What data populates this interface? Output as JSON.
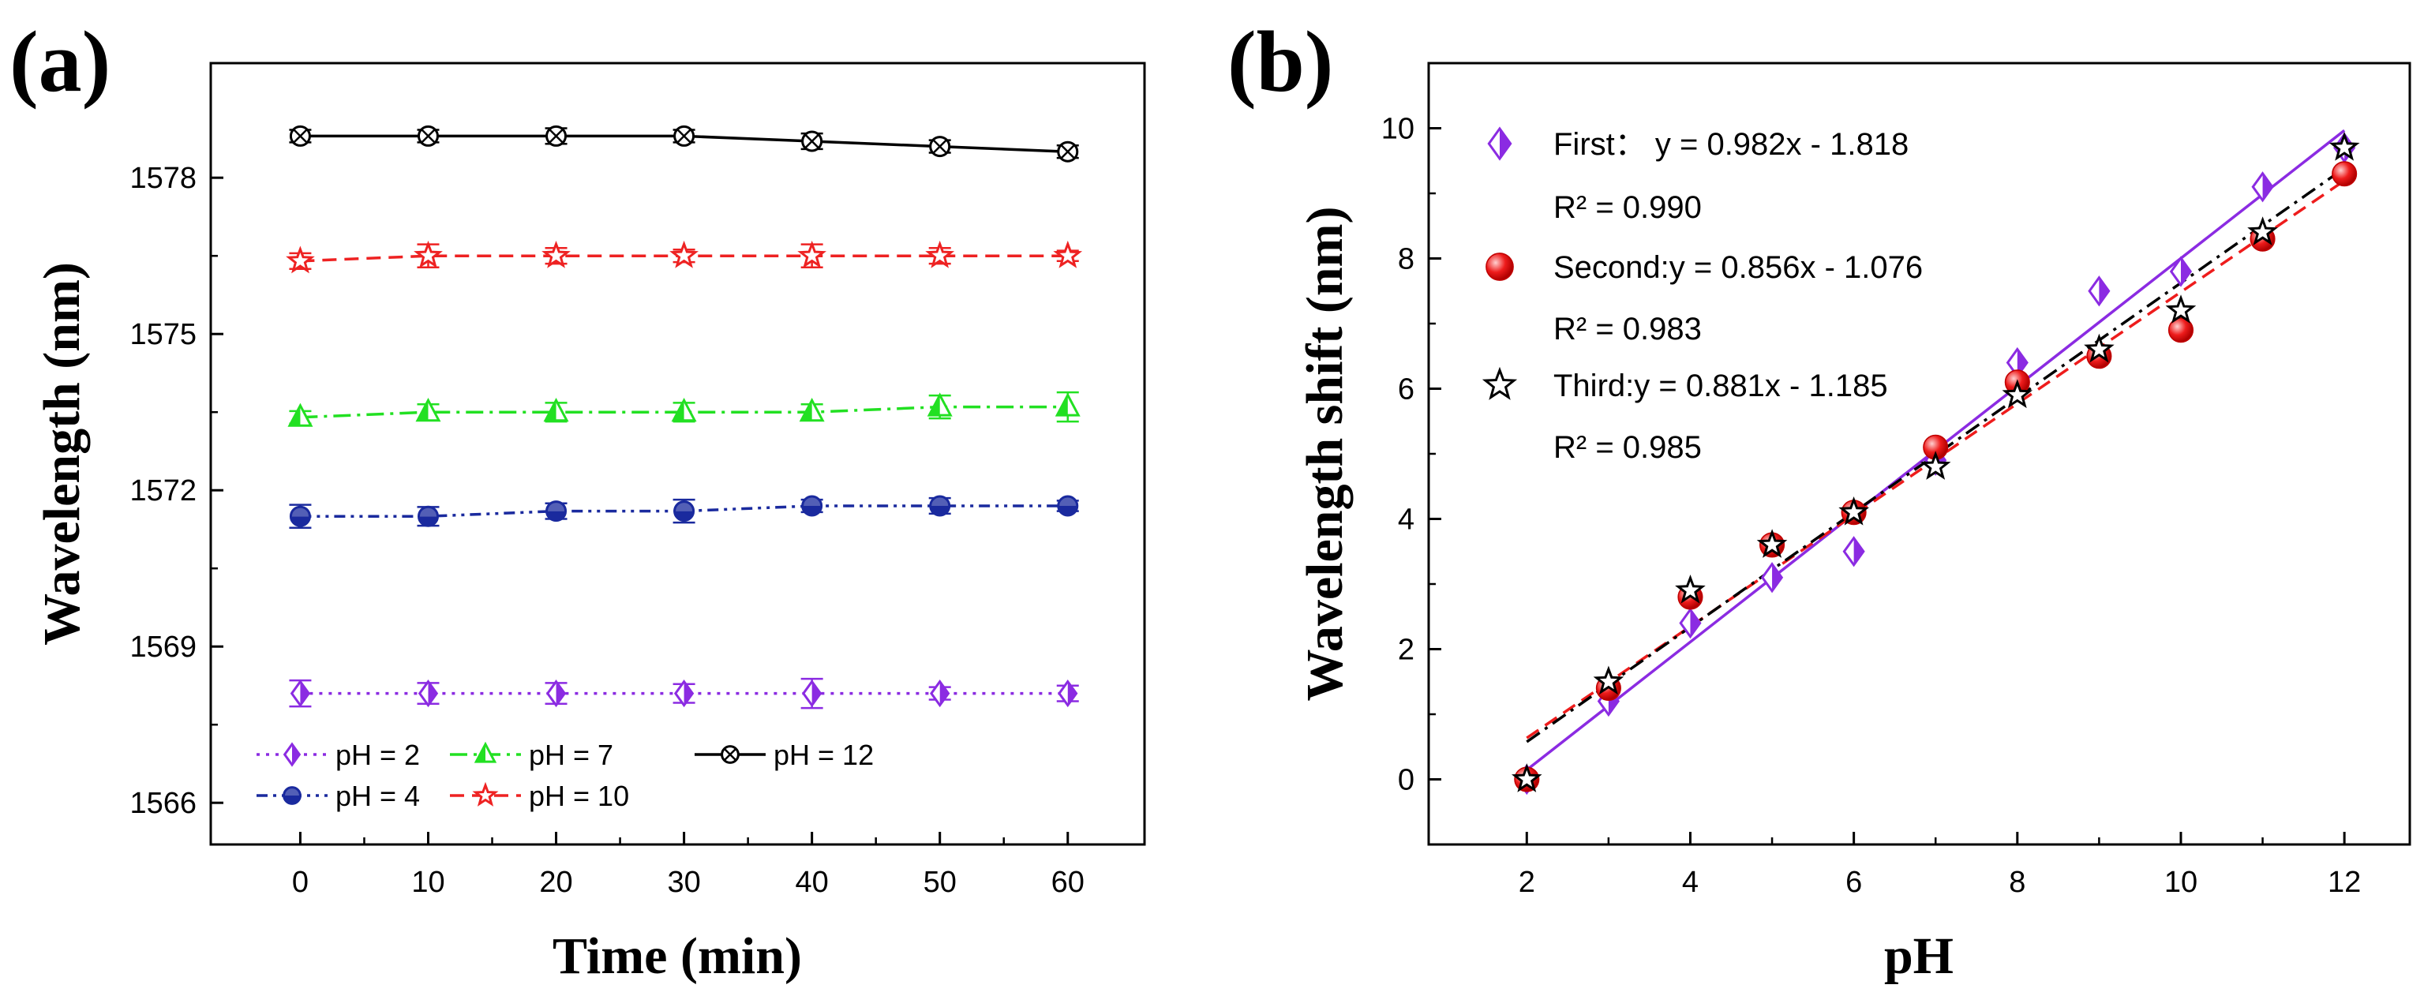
{
  "chart_data": [
    {
      "panel": "(a)",
      "type": "line",
      "xlabel": "Time (min)",
      "ylabel": "Wavelength (nm)",
      "xlim": [
        -7,
        66
      ],
      "ylim": [
        1565.2,
        1580.2
      ],
      "x_ticks": [
        0,
        10,
        20,
        30,
        40,
        50,
        60
      ],
      "y_ticks": [
        1566,
        1569,
        1572,
        1575,
        1578
      ],
      "x": [
        0,
        10,
        20,
        30,
        40,
        50,
        60
      ],
      "series": [
        {
          "name": "pH = 2",
          "color": "#8B2BE2",
          "dash": "4,8",
          "marker": "diamond",
          "values": [
            1568.1,
            1568.1,
            1568.1,
            1568.1,
            1568.1,
            1568.1,
            1568.1
          ],
          "errors": [
            0.25,
            0.2,
            0.2,
            0.18,
            0.28,
            0.12,
            0.15
          ]
        },
        {
          "name": "pH = 4",
          "color": "#1A2A9E",
          "dash": "14,7,4,7,4,7",
          "marker": "circle",
          "values": [
            1571.5,
            1571.5,
            1571.6,
            1571.6,
            1571.7,
            1571.7,
            1571.7
          ],
          "errors": [
            0.22,
            0.18,
            0.15,
            0.22,
            0.12,
            0.15,
            0.1
          ]
        },
        {
          "name": "pH = 7",
          "color": "#22E022",
          "dash": "22,8,4,8",
          "marker": "triangle",
          "values": [
            1573.4,
            1573.5,
            1573.5,
            1573.5,
            1573.5,
            1573.6,
            1573.6
          ],
          "errors": [
            0.12,
            0.15,
            0.18,
            0.18,
            0.15,
            0.22,
            0.28
          ]
        },
        {
          "name": "pH = 10",
          "color": "#EE2222",
          "dash": "18,10",
          "marker": "star",
          "values": [
            1576.4,
            1576.5,
            1576.5,
            1576.5,
            1576.5,
            1576.5,
            1576.5
          ],
          "errors": [
            0.15,
            0.22,
            0.15,
            0.12,
            0.22,
            0.15,
            0.1
          ]
        },
        {
          "name": "pH = 12",
          "color": "#000000",
          "dash": "",
          "marker": "circle-x",
          "values": [
            1578.8,
            1578.8,
            1578.8,
            1578.8,
            1578.7,
            1578.6,
            1578.5
          ],
          "errors": [
            0.12,
            0.12,
            0.15,
            0.12,
            0.15,
            0.12,
            0.12
          ]
        }
      ],
      "legend": [
        "pH = 2",
        "pH = 7",
        "pH = 12",
        "pH = 4",
        "pH = 10"
      ]
    },
    {
      "panel": "(b)",
      "type": "scatter",
      "xlabel": "pH",
      "ylabel": "Wavelength shift (nm)",
      "xlim": [
        0.8,
        12.8
      ],
      "ylim": [
        -1,
        11
      ],
      "x_ticks": [
        2,
        4,
        6,
        8,
        10,
        12
      ],
      "y_ticks": [
        0,
        2,
        4,
        6,
        8,
        10
      ],
      "x": [
        2,
        3,
        4,
        5,
        6,
        7,
        8,
        9,
        10,
        11,
        12
      ],
      "series": [
        {
          "name": "First",
          "color": "#8B2BE2",
          "marker": "diamond",
          "fit_dash": "",
          "values": [
            0,
            1.2,
            2.4,
            3.1,
            3.5,
            4.9,
            6.4,
            7.5,
            7.8,
            9.1,
            9.7
          ],
          "fit": {
            "slope": 0.982,
            "intercept": -1.818
          },
          "equation": "First： y = 0.982x - 1.818",
          "r2": "R² = 0.990"
        },
        {
          "name": "Second",
          "color": "#EE1C1C",
          "marker": "sphere",
          "fit_dash": "18,10",
          "values": [
            0,
            1.4,
            2.8,
            3.6,
            4.1,
            5.1,
            6.1,
            6.5,
            6.9,
            8.3,
            9.3
          ],
          "fit": {
            "slope": 0.856,
            "intercept": -1.076
          },
          "equation": "Second:y = 0.856x - 1.076",
          "r2": "R² = 0.983"
        },
        {
          "name": "Third",
          "color": "#000000",
          "marker": "star",
          "fit_dash": "20,8,4,8",
          "values": [
            0,
            1.5,
            2.9,
            3.6,
            4.1,
            4.8,
            5.9,
            6.6,
            7.2,
            8.4,
            9.7
          ],
          "fit": {
            "slope": 0.881,
            "intercept": -1.185
          },
          "equation": "Third:y = 0.881x - 1.185",
          "r2": "R² = 0.985"
        }
      ]
    }
  ]
}
